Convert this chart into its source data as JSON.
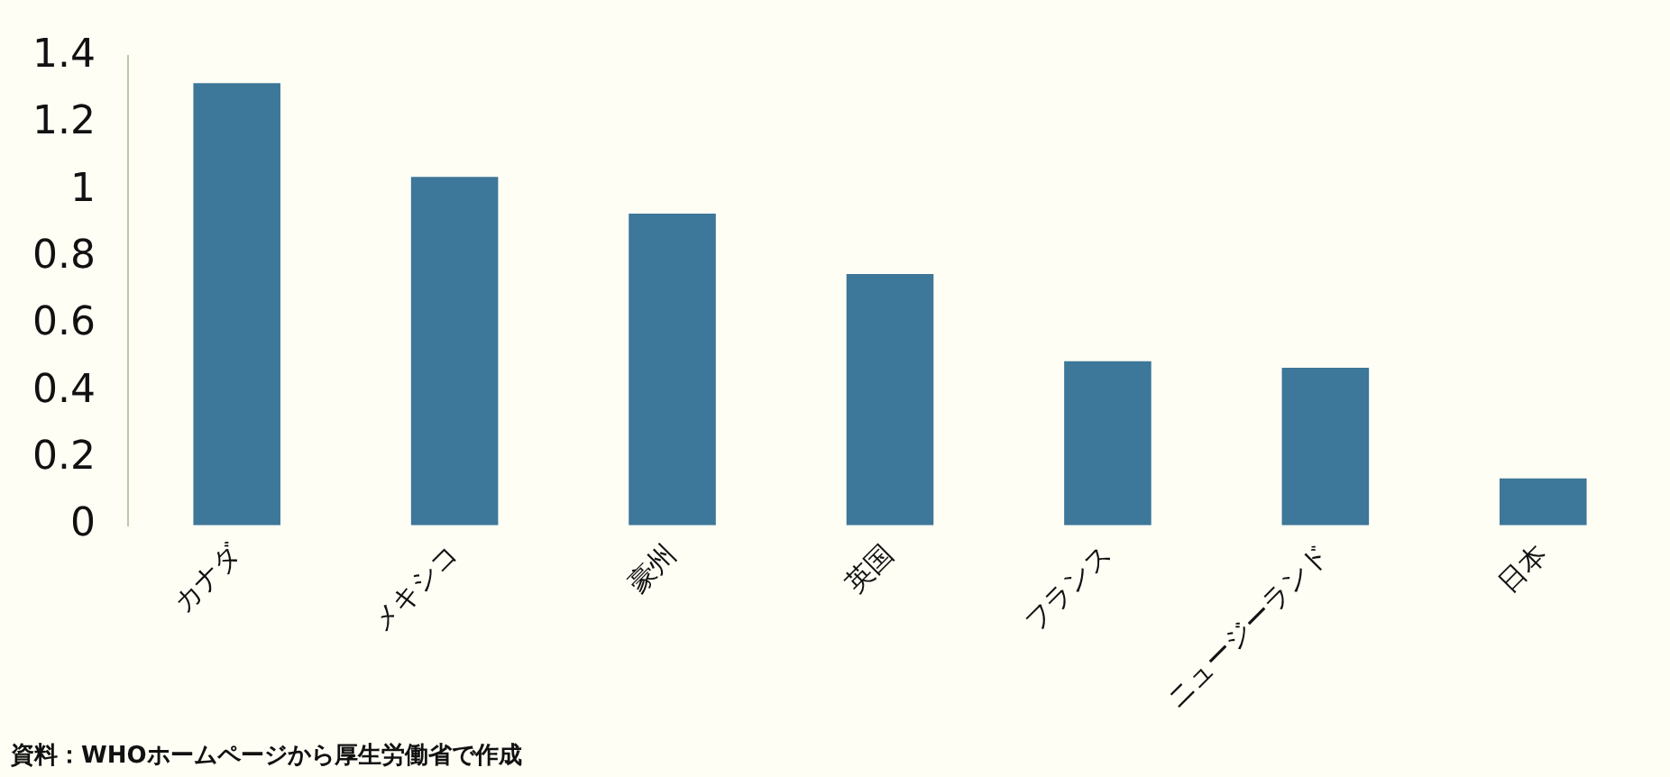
{
  "chart_data": {
    "type": "bar",
    "categories": [
      "カナダ",
      "メキシコ",
      "豪州",
      "英国",
      "フランス",
      "ニュージーランド",
      "日本"
    ],
    "values": [
      1.32,
      1.04,
      0.93,
      0.75,
      0.49,
      0.47,
      0.14
    ],
    "color": "#3d7799",
    "ylim": [
      0,
      1.4
    ],
    "yticks": [
      0,
      0.2,
      0.4,
      0.6,
      0.8,
      1,
      1.2,
      1.4
    ],
    "grid": false,
    "legend": false,
    "annotations": [
      "資料：WHOホームページから厚生労働省で作成"
    ]
  }
}
